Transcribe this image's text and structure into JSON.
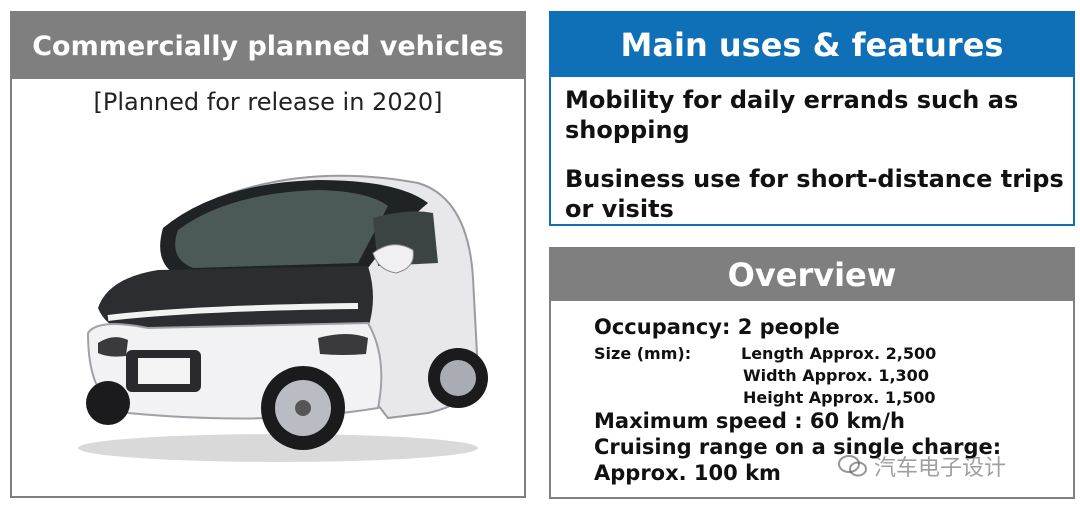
{
  "left_panel": {
    "title": "Commercially planned vehicles",
    "subtitle": "[Planned for release in 2020]"
  },
  "features_panel": {
    "title": "Main uses & features",
    "items": [
      "Mobility for daily errands such as shopping",
      "Business use for short-distance trips or visits"
    ]
  },
  "overview_panel": {
    "title": "Overview",
    "occupancy": "Occupancy: 2 people",
    "size_label": "Size (mm):",
    "length": "Length Approx. 2,500",
    "width": "Width Approx. 1,300",
    "height": "Height Approx. 1,500",
    "max_speed": "Maximum speed : 60 km/h",
    "cruising_label": "Cruising range on a single charge:",
    "cruising_value": "Approx. 100 km"
  },
  "watermark": {
    "text": "汽车电子设计"
  },
  "colors": {
    "gray_header": "#7f7f7f",
    "blue_header": "#0f6fb7"
  }
}
